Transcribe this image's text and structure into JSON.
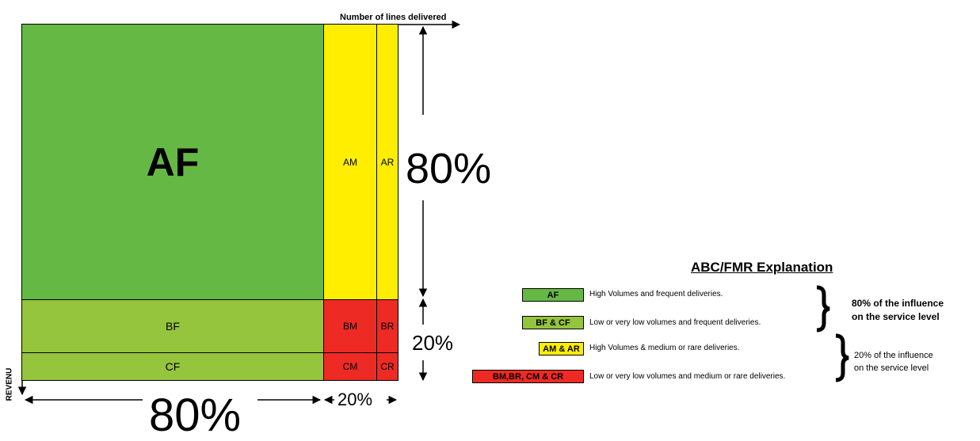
{
  "diagram": {
    "axis_top_label": "Number of lines delivered",
    "axis_left_label": "REVENU",
    "cells": {
      "AF": "AF",
      "AM": "AM",
      "AR": "AR",
      "BF": "BF",
      "BM": "BM",
      "BR": "BR",
      "CF": "CF",
      "CM": "CM",
      "CR": "CR"
    },
    "right_upper_percent": "80%",
    "right_lower_percent": "20%",
    "bottom_left_percent": "80%",
    "bottom_right_percent": "20%",
    "colors": {
      "green_dark": "#66b845",
      "green_light": "#95c43d",
      "yellow": "#ffee00",
      "red": "#ee2a24"
    }
  },
  "legend": {
    "title": "ABC/FMR Explanation",
    "items": [
      {
        "key": "AF",
        "description": "High Volumes and frequent deliveries."
      },
      {
        "key": "BF & CF",
        "description": "Low or very low volumes and frequent deliveries."
      },
      {
        "key": "AM & AR",
        "description": "High Volumes & medium or rare deliveries."
      },
      {
        "key": "BM,BR, CM & CR",
        "description": "Low or very low volumes and medium or rare deliveries."
      }
    ],
    "group_high": {
      "line1": "80% of the influence",
      "line2": "on the service level"
    },
    "group_low": {
      "line1": "20% of the influence",
      "line2": "on the service level"
    }
  }
}
